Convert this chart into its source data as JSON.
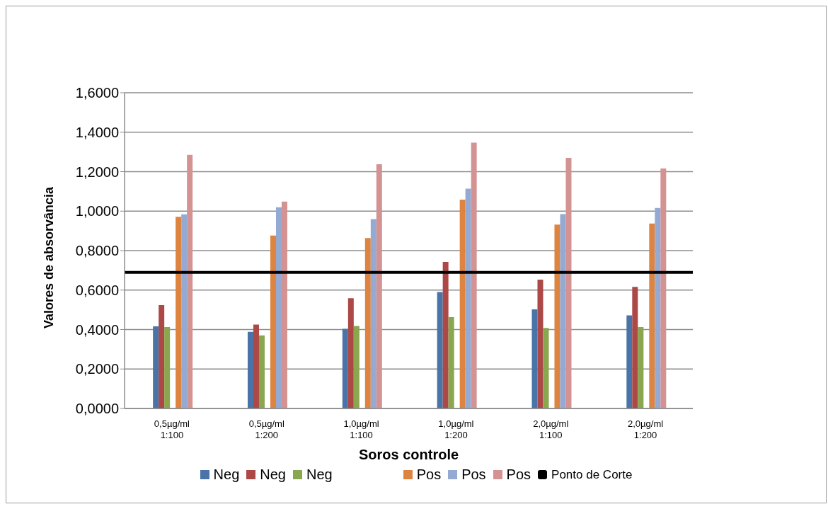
{
  "chart_data": {
    "type": "bar",
    "xlabel": "Soros controle",
    "ylabel": "Valores de absorvância",
    "categories": [
      "0,5µg/ml\n1:100",
      "0,5µg/ml\n1:200",
      "1,0µg/ml\n1:100",
      "1,0µg/ml\n1:200",
      "2,0µg/ml\n1:100",
      "2,0µg/ml\n1:200"
    ],
    "series": [
      {
        "name": "Neg",
        "color": "#4a74a8",
        "values": [
          0.416,
          0.388,
          0.404,
          0.59,
          0.502,
          0.472
        ]
      },
      {
        "name": "Neg",
        "color": "#ac4846",
        "values": [
          0.524,
          0.425,
          0.559,
          0.743,
          0.653,
          0.616
        ]
      },
      {
        "name": "Neg",
        "color": "#8aa64e",
        "values": [
          0.413,
          0.37,
          0.418,
          0.463,
          0.408,
          0.413
        ]
      },
      {
        "values": [
          null,
          null,
          null,
          null,
          null,
          null
        ]
      },
      {
        "name": "Pos",
        "color": "#dd8440",
        "values": [
          0.971,
          0.876,
          0.864,
          1.058,
          0.932,
          0.937
        ]
      },
      {
        "name": "Pos",
        "color": "#95aad2",
        "values": [
          0.984,
          1.02,
          0.96,
          1.114,
          0.985,
          1.016
        ]
      },
      {
        "name": "Pos",
        "color": "#d49393",
        "values": [
          1.285,
          1.048,
          1.238,
          1.347,
          1.27,
          1.216
        ]
      }
    ],
    "ylim": [
      0,
      1.6
    ],
    "yticks": [
      {
        "value": 0,
        "label": "0,0000"
      },
      {
        "value": 0.2,
        "label": "0,2000"
      },
      {
        "value": 0.4,
        "label": "0,4000"
      },
      {
        "value": 0.6,
        "label": "0,6000"
      },
      {
        "value": 0.8,
        "label": "0,8000"
      },
      {
        "value": 1,
        "label": "1,0000"
      },
      {
        "value": 1.2,
        "label": "1,2000"
      },
      {
        "value": 1.4,
        "label": "1,4000"
      },
      {
        "value": 1.6,
        "label": "1,6000"
      }
    ],
    "ref_lines": [
      {
        "axis": "y",
        "value": 0.69,
        "label": "Ponto de Corte",
        "color": "#000000"
      }
    ],
    "grid": "y",
    "legend": "bottom"
  }
}
